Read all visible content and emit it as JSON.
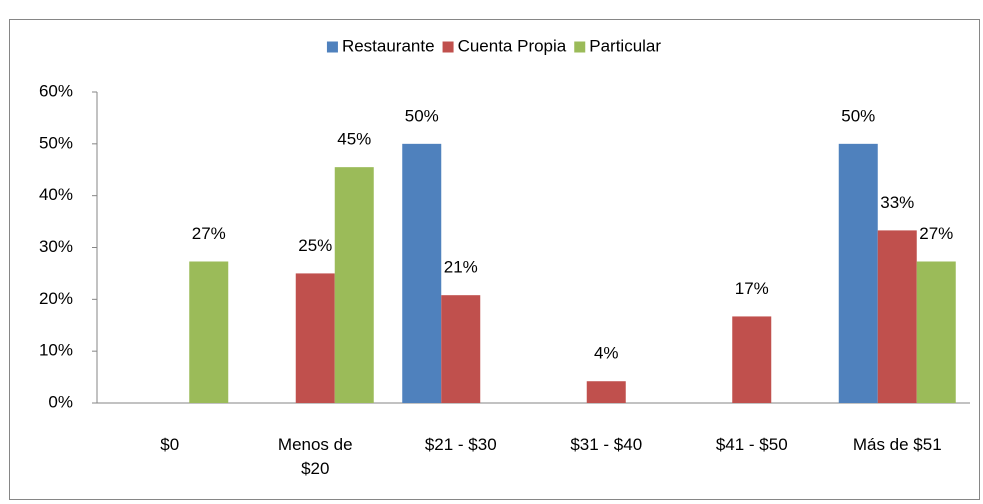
{
  "chart_data": {
    "type": "bar",
    "categories": [
      "$0",
      "Menos de $20",
      "$21 - $30",
      "$31 - $40",
      "$41 - $50",
      "Más de $51"
    ],
    "series": [
      {
        "name": "Restaurante",
        "color": "#4f81bd",
        "values": [
          null,
          null,
          50,
          null,
          null,
          50
        ],
        "value_labels": [
          null,
          null,
          "50%",
          null,
          null,
          "50%"
        ]
      },
      {
        "name": "Cuenta Propia",
        "color": "#c0504d",
        "values": [
          null,
          25,
          20.8,
          4.2,
          16.7,
          33.3
        ],
        "value_labels": [
          null,
          "25%",
          "21%",
          "4%",
          "17%",
          "33%"
        ]
      },
      {
        "name": "Particular",
        "color": "#9bbb59",
        "values": [
          27.3,
          45.5,
          null,
          null,
          null,
          27.3
        ],
        "value_labels": [
          "27%",
          "45%",
          null,
          null,
          null,
          "27%"
        ]
      }
    ],
    "ylim": [
      0,
      60
    ],
    "yticks": [
      {
        "value": 0,
        "label": "0%"
      },
      {
        "value": 10,
        "label": "10%"
      },
      {
        "value": 20,
        "label": "20%"
      },
      {
        "value": 30,
        "label": "30%"
      },
      {
        "value": 40,
        "label": "40%"
      },
      {
        "value": 50,
        "label": "50%"
      },
      {
        "value": 60,
        "label": "60%"
      }
    ],
    "legend": "top"
  }
}
